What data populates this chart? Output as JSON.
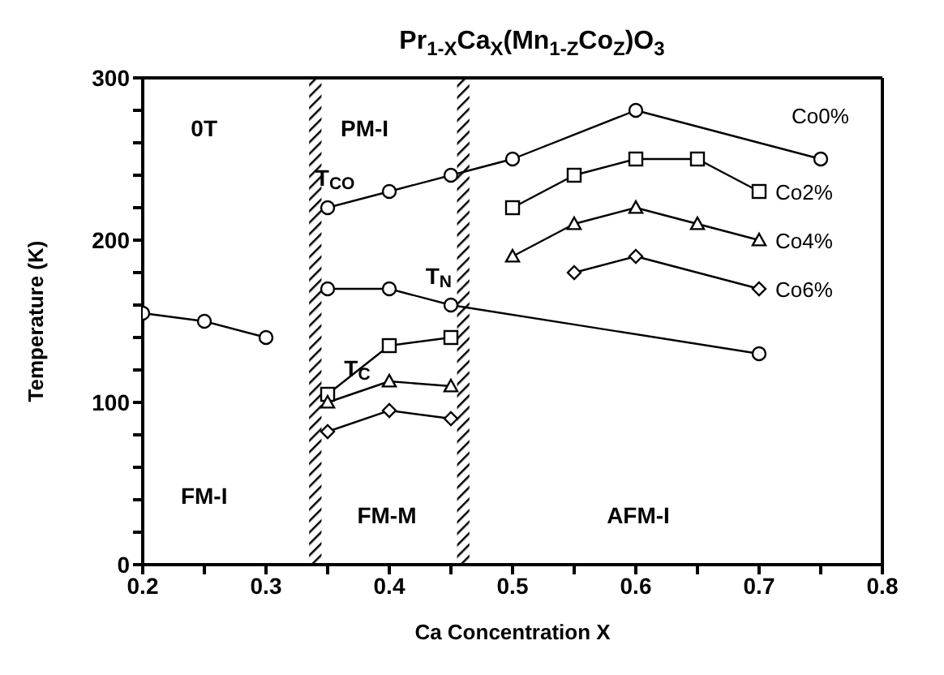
{
  "chart_data": {
    "type": "line",
    "title": "Pr$_{1-X}$Ca$_{X}$(Mn$_{1-Z}$Co$_{Z}$)O$_{3}$",
    "xlabel": "Ca Concentration X",
    "ylabel": "Temperature (K)",
    "xlim": [
      0.2,
      0.8
    ],
    "ylim": [
      0,
      300
    ],
    "xticks": [
      {
        "value": 0.2,
        "label": "0.2"
      },
      {
        "value": 0.25,
        "label": null
      },
      {
        "value": 0.3,
        "label": "0.3"
      },
      {
        "value": 0.35,
        "label": null
      },
      {
        "value": 0.4,
        "label": "0.4"
      },
      {
        "value": 0.45,
        "label": null
      },
      {
        "value": 0.5,
        "label": "0.5"
      },
      {
        "value": 0.55,
        "label": null
      },
      {
        "value": 0.6,
        "label": "0.6"
      },
      {
        "value": 0.65,
        "label": null
      },
      {
        "value": 0.7,
        "label": "0.7"
      },
      {
        "value": 0.75,
        "label": null
      },
      {
        "value": 0.8,
        "label": "0.8"
      }
    ],
    "yticks": [
      0,
      {
        "value": 20,
        "label": null
      },
      {
        "value": 40,
        "label": null
      },
      {
        "value": 60,
        "label": null
      },
      {
        "value": 80,
        "label": null
      },
      100,
      {
        "value": 120,
        "label": null
      },
      {
        "value": 140,
        "label": null
      },
      {
        "value": 160,
        "label": null
      },
      {
        "value": 180,
        "label": null
      },
      200,
      {
        "value": 220,
        "label": null
      },
      {
        "value": 240,
        "label": null
      },
      {
        "value": 260,
        "label": null
      },
      {
        "value": 280,
        "label": null
      },
      300
    ],
    "line_style": "solid",
    "series": [
      {
        "name": "Co0%",
        "color": "#000000",
        "marker": "circle",
        "x": [
          0.35,
          0.4,
          0.45,
          0.5,
          0.6,
          0.75
        ],
        "values": [
          220,
          230,
          240,
          250,
          280,
          250
        ]
      },
      {
        "name": "Co2%",
        "color": "#000000",
        "marker": "square",
        "x": [
          0.5,
          0.55,
          0.6,
          0.65,
          0.7
        ],
        "values": [
          220,
          240,
          250,
          250,
          230
        ]
      },
      {
        "name": "Co4%",
        "color": "#000000",
        "marker": "triangle",
        "x": [
          0.5,
          0.55,
          0.6,
          0.65,
          0.7
        ],
        "values": [
          190,
          210,
          220,
          210,
          200
        ]
      },
      {
        "name": "Co6%",
        "color": "#000000",
        "marker": "diamond",
        "x": [
          0.55,
          0.6,
          0.7
        ],
        "values": [
          180,
          190,
          170
        ]
      },
      {
        "color": "#000000",
        "marker": "circle",
        "x": [
          0.35,
          0.4,
          0.45,
          0.7
        ],
        "values": [
          170,
          170,
          160,
          130
        ]
      },
      {
        "color": "#000000",
        "marker": "circle",
        "x": [
          0.2,
          0.25,
          0.3
        ],
        "values": [
          155,
          150,
          140
        ]
      },
      {
        "color": "#000000",
        "marker": "square",
        "x": [
          0.35,
          0.4,
          0.45
        ],
        "values": [
          105,
          135,
          140
        ]
      },
      {
        "color": "#000000",
        "marker": "triangle",
        "x": [
          0.35,
          0.4,
          0.45
        ],
        "values": [
          100,
          113,
          110
        ]
      },
      {
        "color": "#000000",
        "marker": "diamond",
        "x": [
          0.35,
          0.4,
          0.45
        ],
        "values": [
          82,
          95,
          90
        ]
      }
    ],
    "bands": [
      {
        "axis": "x",
        "from": 0.335,
        "to": 0.345
      },
      {
        "axis": "x",
        "from": 0.455,
        "to": 0.465
      }
    ],
    "annotations": [
      "0T",
      "PM-I",
      "T$_{CO}$",
      "T$_{N}$",
      "T$_{C}$",
      "FM-I",
      "FM-M",
      "AFM-I"
    ]
  }
}
